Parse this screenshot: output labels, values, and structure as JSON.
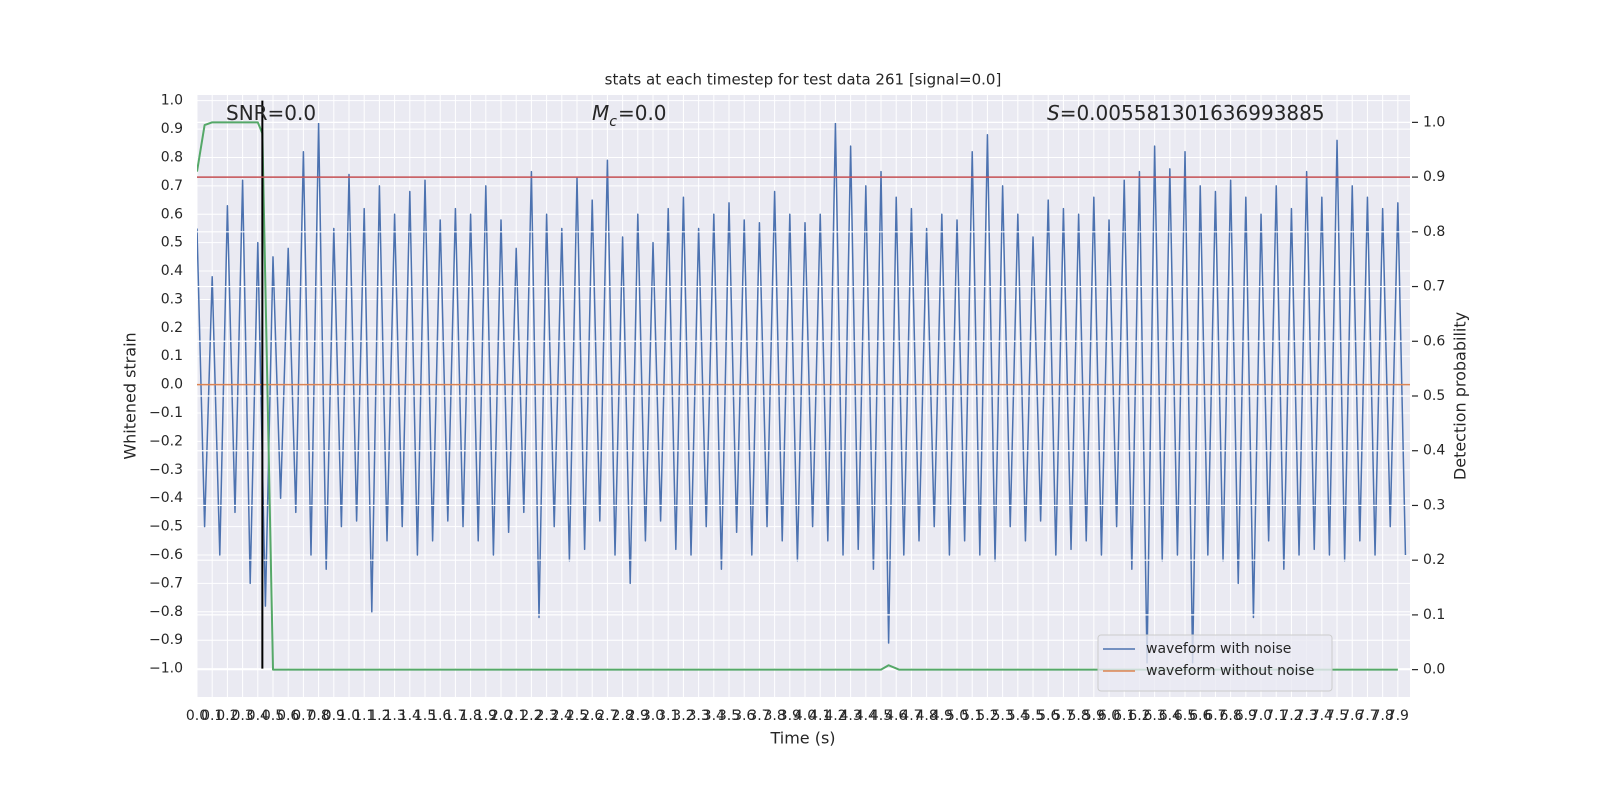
{
  "chart_data": {
    "type": "line",
    "title": "stats at each timestep for test data 261 [signal=0.0]",
    "xlabel": "Time (s)",
    "ylabel": "Whitened strain",
    "y2label": "Detection probability",
    "annotations": [
      {
        "text": "SNR=0.0"
      },
      {
        "symbol": "M",
        "subscript": "c",
        "text": "=0.0"
      },
      {
        "symbol": "S",
        "text": "=0.005581301636993885"
      }
    ],
    "xlim": [
      0,
      7.98
    ],
    "ylim": [
      -1.1,
      1.02
    ],
    "y2lim": [
      -0.05,
      1.05
    ],
    "xticks": [
      {
        "value": 0,
        "label": "0.0"
      },
      0.1,
      0.2,
      0.3,
      0.4,
      0.5,
      0.6,
      0.7,
      0.8,
      0.9,
      {
        "value": 1,
        "label": "1.0"
      },
      1.1,
      1.2,
      1.3,
      1.4,
      1.5,
      1.6,
      1.7,
      1.8,
      1.9,
      {
        "value": 2,
        "label": "2.0"
      },
      2.1,
      2.2,
      2.3,
      2.4,
      2.5,
      2.6,
      2.7,
      2.8,
      2.9,
      {
        "value": 3,
        "label": "3.0"
      },
      3.1,
      3.2,
      3.3,
      3.4,
      3.5,
      3.6,
      3.7,
      3.8,
      3.9,
      {
        "value": 4,
        "label": "4.0"
      },
      4.1,
      4.2,
      4.3,
      4.4,
      4.5,
      4.6,
      4.7,
      4.8,
      4.9,
      {
        "value": 5,
        "label": "5.0"
      },
      5.1,
      5.2,
      5.3,
      5.4,
      5.5,
      5.6,
      5.7,
      5.8,
      5.9,
      {
        "value": 6,
        "label": "6.0"
      },
      6.1,
      6.2,
      6.3,
      6.4,
      6.5,
      6.6,
      6.7,
      6.8,
      6.9,
      {
        "value": 7,
        "label": "7.0"
      },
      7.1,
      7.2,
      7.3,
      7.4,
      7.5,
      7.6,
      7.7,
      7.8,
      7.9
    ],
    "yticks": [
      {
        "value": -1,
        "label": "−1.0"
      },
      {
        "value": -0.9,
        "label": "−0.9"
      },
      {
        "value": -0.8,
        "label": "−0.8"
      },
      {
        "value": -0.7,
        "label": "−0.7"
      },
      {
        "value": -0.6,
        "label": "−0.6"
      },
      {
        "value": -0.5,
        "label": "−0.5"
      },
      {
        "value": -0.4,
        "label": "−0.4"
      },
      {
        "value": -0.3,
        "label": "−0.3"
      },
      {
        "value": -0.2,
        "label": "−0.2"
      },
      {
        "value": -0.1,
        "label": "−0.1"
      },
      {
        "value": 0,
        "label": "0.0"
      },
      0.1,
      0.2,
      0.3,
      0.4,
      0.5,
      0.6,
      0.7,
      0.8,
      0.9,
      {
        "value": 1,
        "label": "1.0"
      }
    ],
    "y2ticks": [
      {
        "value": 0,
        "label": "0.0"
      },
      0.1,
      0.2,
      0.3,
      0.4,
      0.5,
      0.6,
      0.7,
      0.8,
      0.9,
      {
        "value": 1,
        "label": "1.0"
      }
    ],
    "grid": true,
    "legend": "lower right",
    "series": [
      {
        "name": "waveform with noise",
        "color": "#4c72b0",
        "x": [
          0,
          0.05,
          0.1,
          0.15,
          0.2,
          0.25,
          0.3,
          0.35,
          0.4,
          0.45,
          0.5,
          0.55,
          0.6,
          0.65,
          0.7,
          0.75,
          0.8,
          0.85,
          0.9,
          0.95,
          1,
          1.05,
          1.1,
          1.15,
          1.2,
          1.25,
          1.3,
          1.35,
          1.4,
          1.45,
          1.5,
          1.55,
          1.6,
          1.65,
          1.7,
          1.75,
          1.8,
          1.85,
          1.9,
          1.95,
          2,
          2.05,
          2.1,
          2.15,
          2.2,
          2.25,
          2.3,
          2.35,
          2.4,
          2.45,
          2.5,
          2.55,
          2.6,
          2.65,
          2.7,
          2.75,
          2.8,
          2.85,
          2.9,
          2.95,
          3,
          3.05,
          3.1,
          3.15,
          3.2,
          3.25,
          3.3,
          3.35,
          3.4,
          3.45,
          3.5,
          3.55,
          3.6,
          3.65,
          3.7,
          3.75,
          3.8,
          3.85,
          3.9,
          3.95,
          4,
          4.05,
          4.1,
          4.15,
          4.2,
          4.25,
          4.3,
          4.35,
          4.4,
          4.45,
          4.5,
          4.55,
          4.6,
          4.65,
          4.7,
          4.75,
          4.8,
          4.85,
          4.9,
          4.95,
          5,
          5.05,
          5.1,
          5.15,
          5.2,
          5.25,
          5.3,
          5.35,
          5.4,
          5.45,
          5.5,
          5.55,
          5.6,
          5.65,
          5.7,
          5.75,
          5.8,
          5.85,
          5.9,
          5.95,
          6,
          6.05,
          6.1,
          6.15,
          6.2,
          6.25,
          6.3,
          6.35,
          6.4,
          6.45,
          6.5,
          6.55,
          6.6,
          6.65,
          6.7,
          6.75,
          6.8,
          6.85,
          6.9,
          6.95,
          7,
          7.05,
          7.1,
          7.15,
          7.2,
          7.25,
          7.3,
          7.35,
          7.4,
          7.45,
          7.5,
          7.55,
          7.6,
          7.65,
          7.7,
          7.75,
          7.8,
          7.85,
          7.9,
          7.95
        ],
        "values": [
          0.55,
          -0.5,
          0.38,
          -0.6,
          0.63,
          -0.45,
          0.72,
          -0.7,
          0.5,
          -0.78,
          0.45,
          -0.4,
          0.48,
          -0.45,
          0.82,
          -0.6,
          0.92,
          -0.65,
          0.55,
          -0.5,
          0.74,
          -0.48,
          0.62,
          -0.8,
          0.7,
          -0.55,
          0.6,
          -0.5,
          0.68,
          -0.6,
          0.72,
          -0.55,
          0.58,
          -0.48,
          0.62,
          -0.5,
          0.6,
          -0.55,
          0.7,
          -0.6,
          0.58,
          -0.52,
          0.48,
          -0.45,
          0.75,
          -0.82,
          0.6,
          -0.5,
          0.55,
          -0.62,
          0.73,
          -0.58,
          0.65,
          -0.48,
          0.79,
          -0.6,
          0.52,
          -0.7,
          0.6,
          -0.55,
          0.5,
          -0.48,
          0.62,
          -0.58,
          0.66,
          -0.6,
          0.55,
          -0.5,
          0.6,
          -0.65,
          0.64,
          -0.52,
          0.58,
          -0.6,
          0.57,
          -0.5,
          0.68,
          -0.55,
          0.6,
          -0.62,
          0.57,
          -0.5,
          0.6,
          -0.55,
          0.92,
          -0.6,
          0.84,
          -0.58,
          0.7,
          -0.65,
          0.75,
          -0.91,
          0.66,
          -0.6,
          0.62,
          -0.55,
          0.55,
          -0.5,
          0.6,
          -0.6,
          0.58,
          -0.55,
          0.82,
          -0.6,
          0.88,
          -0.62,
          0.7,
          -0.5,
          0.6,
          -0.55,
          0.52,
          -0.48,
          0.65,
          -0.6,
          0.62,
          -0.58,
          0.6,
          -0.55,
          0.66,
          -0.6,
          0.58,
          -0.5,
          0.72,
          -0.65,
          0.75,
          -0.98,
          0.84,
          -0.62,
          0.76,
          -0.6,
          0.82,
          -0.98,
          0.7,
          -0.6,
          0.68,
          -0.62,
          0.72,
          -0.7,
          0.66,
          -0.82,
          0.6,
          -0.55,
          0.7,
          -0.65,
          0.62,
          -0.6,
          0.75,
          -0.58,
          0.66,
          -0.6,
          0.86,
          -0.62,
          0.7,
          -0.55,
          0.66,
          -0.6,
          0.62,
          -0.5,
          0.64,
          -0.6
        ]
      },
      {
        "name": "waveform without noise",
        "color": "#dd8452",
        "x": [
          0,
          7.98
        ],
        "values": [
          0,
          0
        ]
      },
      {
        "color": "#55a868",
        "axis": "y2",
        "x": [
          0,
          0.05,
          0.1,
          0.15,
          0.4,
          0.43,
          0.5,
          4.5,
          4.55,
          4.62,
          7.9
        ],
        "values": [
          0.91,
          0.995,
          1.0,
          1.0,
          1.0,
          0.98,
          0.0,
          0.0,
          0.008,
          0.0,
          0.0
        ]
      }
    ],
    "hline": {
      "value": 0.9,
      "axis": "y2",
      "color": "#c44e52"
    },
    "vline": {
      "x": 0.43,
      "ymin": -1,
      "ymax": 1,
      "color": "#000000"
    }
  }
}
